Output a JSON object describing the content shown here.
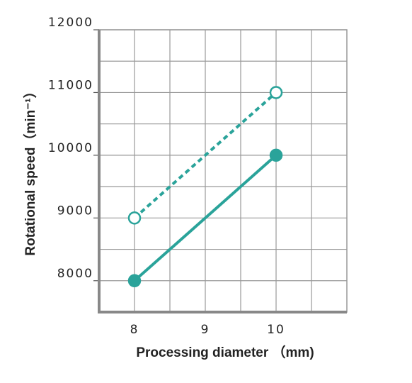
{
  "chart_data": {
    "type": "line",
    "xlabel": "Processing diameter （mm)",
    "ylabel": "Rotational speed（min⁻¹）",
    "xlim": [
      7.5,
      11
    ],
    "ylim": [
      7500,
      12000
    ],
    "xticks": [
      8,
      9,
      10
    ],
    "yticks": [
      8000,
      9000,
      10000,
      11000,
      12000
    ],
    "grid": true,
    "minor_grid": true,
    "series": [
      {
        "color": "#2aa39a",
        "dashed": false,
        "marker": "filled",
        "x": [
          8,
          10
        ],
        "values": [
          8000,
          10000
        ]
      },
      {
        "color": "#2aa39a",
        "dashed": true,
        "marker": "open",
        "x": [
          8,
          10
        ],
        "values": [
          9000,
          11000
        ]
      }
    ]
  }
}
